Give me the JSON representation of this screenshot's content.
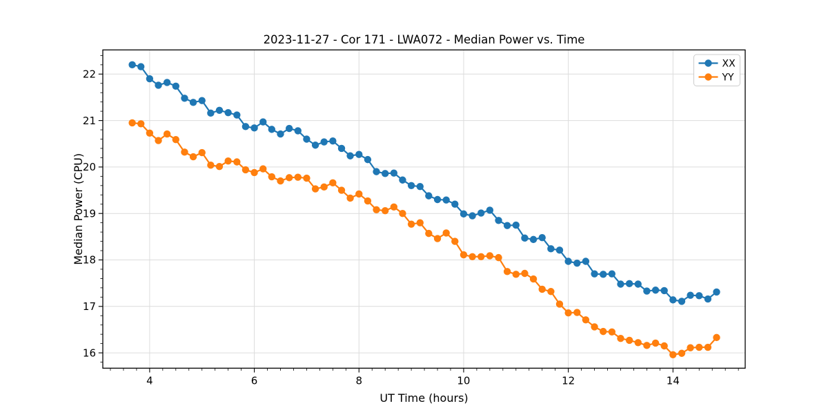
{
  "chart_data": {
    "type": "line",
    "title": "2023-11-27 - Cor 171 - LWA072 - Median Power vs. Time",
    "xlabel": "UT Time (hours)",
    "ylabel": "Median Power (CPU)",
    "xlim": [
      3.105,
      15.38
    ],
    "ylim": [
      15.67,
      22.52
    ],
    "xticks": [
      4,
      6,
      8,
      10,
      12,
      14
    ],
    "yticks": [
      16,
      17,
      18,
      19,
      20,
      21,
      22
    ],
    "minor_x_step": 0.25,
    "minor_y_step": 0.2,
    "grid": true,
    "legend_position": "upper right",
    "marker": "circle",
    "x": [
      3.667,
      3.833,
      4.0,
      4.167,
      4.333,
      4.5,
      4.667,
      4.833,
      5.0,
      5.167,
      5.333,
      5.5,
      5.667,
      5.833,
      6.0,
      6.167,
      6.333,
      6.5,
      6.667,
      6.833,
      7.0,
      7.167,
      7.333,
      7.5,
      7.667,
      7.833,
      8.0,
      8.167,
      8.333,
      8.5,
      8.667,
      8.833,
      9.0,
      9.167,
      9.333,
      9.5,
      9.667,
      9.833,
      10.0,
      10.167,
      10.333,
      10.5,
      10.667,
      10.833,
      11.0,
      11.167,
      11.333,
      11.5,
      11.667,
      11.833,
      12.0,
      12.167,
      12.333,
      12.5,
      12.667,
      12.833,
      13.0,
      13.167,
      13.333,
      13.5,
      13.667,
      13.833,
      14.0,
      14.167,
      14.333,
      14.5,
      14.667,
      14.833
    ],
    "series": [
      {
        "name": "XX",
        "color": "#1f77b4",
        "values": [
          22.2,
          22.16,
          21.9,
          21.76,
          21.82,
          21.74,
          21.48,
          21.39,
          21.43,
          21.16,
          21.22,
          21.17,
          21.12,
          20.87,
          20.84,
          20.97,
          20.81,
          20.71,
          20.83,
          20.78,
          20.6,
          20.47,
          20.54,
          20.56,
          20.4,
          20.24,
          20.27,
          20.16,
          19.9,
          19.86,
          19.87,
          19.72,
          19.6,
          19.58,
          19.38,
          19.3,
          19.29,
          19.2,
          18.99,
          18.95,
          19.01,
          19.07,
          18.85,
          18.74,
          18.75,
          18.47,
          18.44,
          18.48,
          18.24,
          18.21,
          17.97,
          17.93,
          17.97,
          17.7,
          17.69,
          17.7,
          17.48,
          17.49,
          17.48,
          17.33,
          17.35,
          17.34,
          17.14,
          17.11,
          17.24,
          17.23,
          17.16,
          17.31
        ]
      },
      {
        "name": "YY",
        "color": "#ff7f0e",
        "values": [
          20.95,
          20.93,
          20.73,
          20.57,
          20.71,
          20.59,
          20.32,
          20.22,
          20.31,
          20.04,
          20.01,
          20.13,
          20.11,
          19.94,
          19.88,
          19.96,
          19.79,
          19.7,
          19.77,
          19.78,
          19.76,
          19.53,
          19.57,
          19.66,
          19.5,
          19.33,
          19.42,
          19.27,
          19.08,
          19.06,
          19.14,
          19.0,
          18.77,
          18.8,
          18.57,
          18.46,
          18.58,
          18.4,
          18.11,
          18.07,
          18.07,
          18.09,
          18.05,
          17.75,
          17.69,
          17.71,
          17.59,
          17.37,
          17.32,
          17.05,
          16.86,
          16.87,
          16.71,
          16.56,
          16.46,
          16.45,
          16.31,
          16.27,
          16.22,
          16.16,
          16.21,
          16.15,
          15.96,
          15.99,
          16.11,
          16.12,
          16.12,
          16.33
        ]
      }
    ],
    "style": {
      "grid_color": "#dcdcdc",
      "spine_color": "#000000",
      "legend_border_color": "#cccccc",
      "background": "#ffffff"
    }
  }
}
